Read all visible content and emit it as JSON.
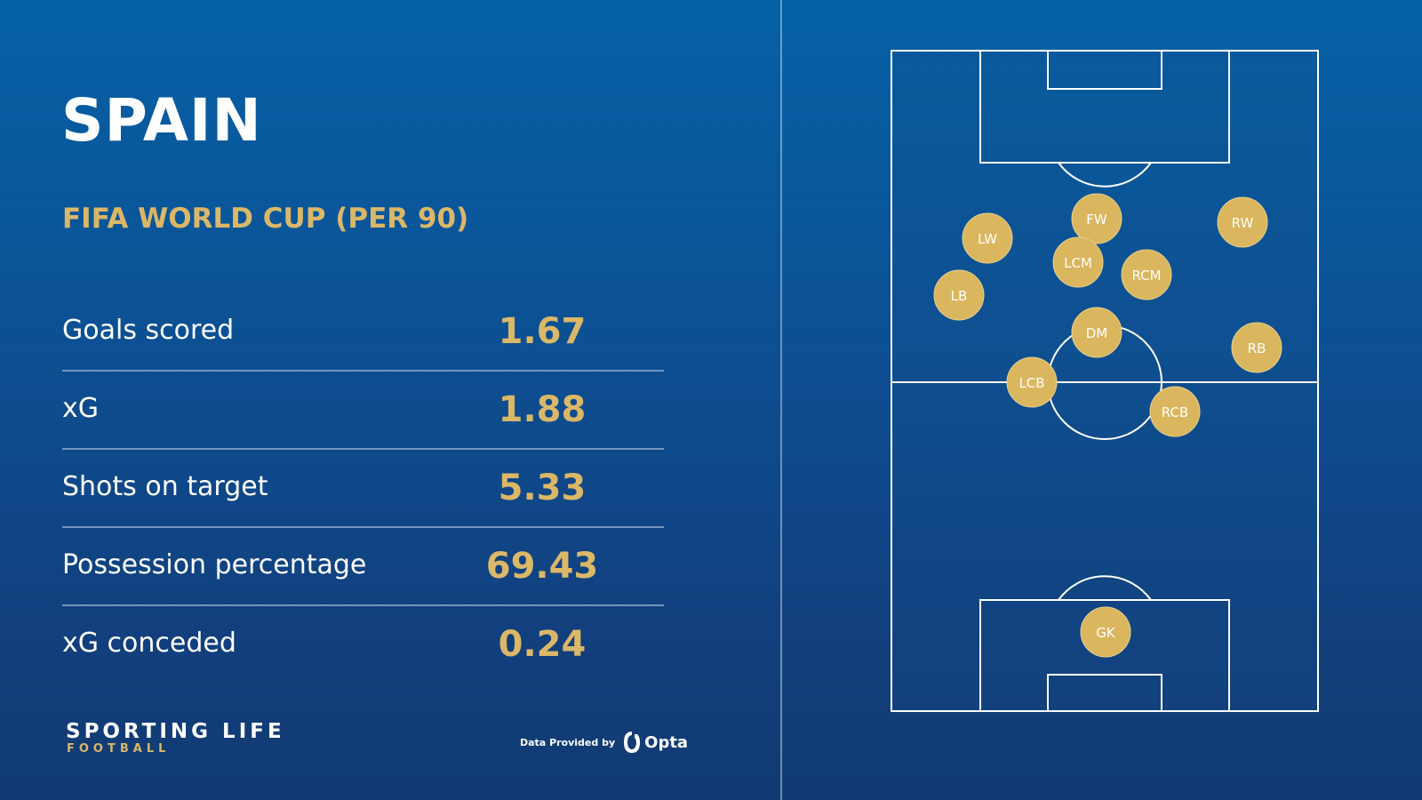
{
  "header": {
    "team": "SPAIN",
    "competition": "FIFA WORLD CUP (PER 90)"
  },
  "stats": [
    {
      "label": "Goals scored",
      "value": "1.67"
    },
    {
      "label": "xG",
      "value": "1.88"
    },
    {
      "label": "Shots on target",
      "value": "5.33"
    },
    {
      "label": "Possession percentage",
      "value": "69.43"
    },
    {
      "label": "xG conceded",
      "value": "0.24"
    }
  ],
  "footer": {
    "brand_main": "SPORTING LIFE",
    "brand_sub": "FOOTBALL",
    "credit_text": "Data Provided by",
    "credit_brand": "Opta"
  },
  "formation": {
    "players": [
      {
        "label": "FW"
      },
      {
        "label": "RW"
      },
      {
        "label": "LW"
      },
      {
        "label": "LCM"
      },
      {
        "label": "RCM"
      },
      {
        "label": "LB"
      },
      {
        "label": "DM"
      },
      {
        "label": "RB"
      },
      {
        "label": "LCB"
      },
      {
        "label": "RCB"
      },
      {
        "label": "GK"
      }
    ]
  },
  "colors": {
    "background_top": "#0561a6",
    "background_bottom": "#113a72",
    "accent_gold": "#dbb768",
    "player_marker": "#dab65e",
    "text_white": "#ffffff"
  }
}
